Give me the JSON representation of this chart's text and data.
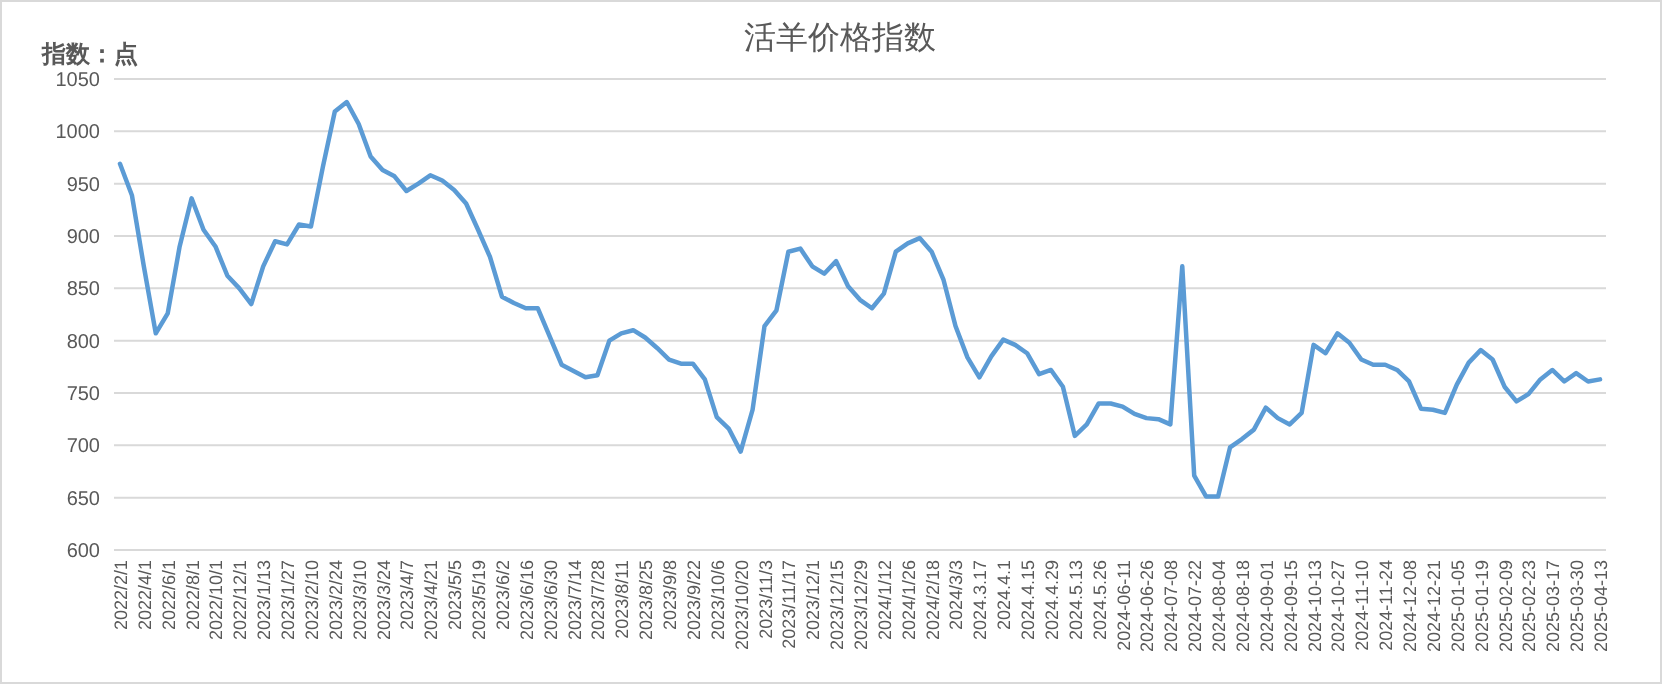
{
  "chart_data": {
    "type": "line",
    "title": "活羊价格指数",
    "ylabel": "指数：点",
    "categories": [
      "2022/2/1",
      null,
      "2022/4/1",
      null,
      "2022/6/1",
      null,
      "2022/8/1",
      null,
      "2022/10/1",
      null,
      "2022/12/1",
      null,
      "2023/1/13",
      null,
      "2023/1/27",
      null,
      "2023/2/10",
      null,
      "2023/2/24",
      null,
      "2023/3/10",
      null,
      "2023/3/24",
      null,
      "2023/4/7",
      null,
      "2023/4/21",
      null,
      "2023/5/5",
      null,
      "2023/5/19",
      null,
      "2023/6/2",
      null,
      "2023/6/16",
      null,
      "2023/6/30",
      null,
      "2023/7/14",
      null,
      "2023/7/28",
      null,
      "2023/8/11",
      null,
      "2023/8/25",
      null,
      "2023/9/8",
      null,
      "2023/9/22",
      null,
      "2023/10/6",
      null,
      "2023/10/20",
      null,
      "2023/11/3",
      null,
      "2023/11/17",
      null,
      "2023/12/1",
      null,
      "2023/12/15",
      null,
      "2023/12/29",
      null,
      "2024/1/12",
      null,
      "2024/1/26",
      null,
      "2024/2/18",
      null,
      "2024/3/3",
      null,
      "2024.3.17",
      null,
      "2024.4.1",
      null,
      "2024.4.15",
      null,
      "2024.4.29",
      null,
      "2024.5.13",
      null,
      "2024.5.26",
      null,
      "2024-06-11",
      null,
      "2024-06-26",
      null,
      "2024-07-08",
      null,
      "2024-07-22",
      null,
      "2024-08-04",
      null,
      "2024-08-18",
      null,
      "2024-09-01",
      null,
      "2024-09-15",
      null,
      "2024-10-13",
      null,
      "2024-10-27",
      null,
      "2024-11-10",
      null,
      "2024-11-24",
      null,
      "2024-12-08",
      null,
      "2024-12-21",
      null,
      "2025-01-05",
      null,
      "2025-01-19",
      null,
      "2025-02-09",
      null,
      "2025-02-23",
      null,
      "2025-03-17",
      null,
      "2025-03-30",
      null,
      "2025-04-13"
    ],
    "series": [
      {
        "color": "#5b9bd5",
        "values": [
          969,
          939,
          871,
          807,
          826,
          890,
          936,
          906,
          890,
          862,
          850,
          835,
          871,
          895,
          892,
          911,
          909,
          966,
          1019,
          1028,
          1007,
          976,
          963,
          957,
          943,
          950,
          958,
          953,
          944,
          931,
          906,
          880,
          842,
          836,
          831,
          831,
          804,
          777,
          771,
          765,
          767,
          800,
          807,
          810,
          803,
          793,
          782,
          778,
          778,
          763,
          727,
          716,
          694,
          734,
          814,
          829,
          885,
          888,
          871,
          864,
          876,
          852,
          839,
          831,
          845,
          885,
          893,
          898,
          885,
          858,
          814,
          784,
          765,
          785,
          801,
          796,
          788,
          768,
          772,
          756,
          709,
          720,
          740,
          740,
          737,
          730,
          726,
          725,
          720,
          871,
          671,
          651,
          651,
          698,
          706,
          715,
          736,
          726,
          720,
          731,
          796,
          788,
          807,
          798,
          782,
          777,
          777,
          772,
          761,
          735,
          734,
          731,
          758,
          779,
          791,
          782,
          756,
          742,
          749,
          763,
          772,
          761,
          769,
          761,
          763
        ]
      }
    ],
    "ylim": [
      600,
      1050
    ],
    "yticks": [
      600,
      650,
      700,
      750,
      800,
      850,
      900,
      950,
      1000,
      1050
    ],
    "grid": "y"
  }
}
